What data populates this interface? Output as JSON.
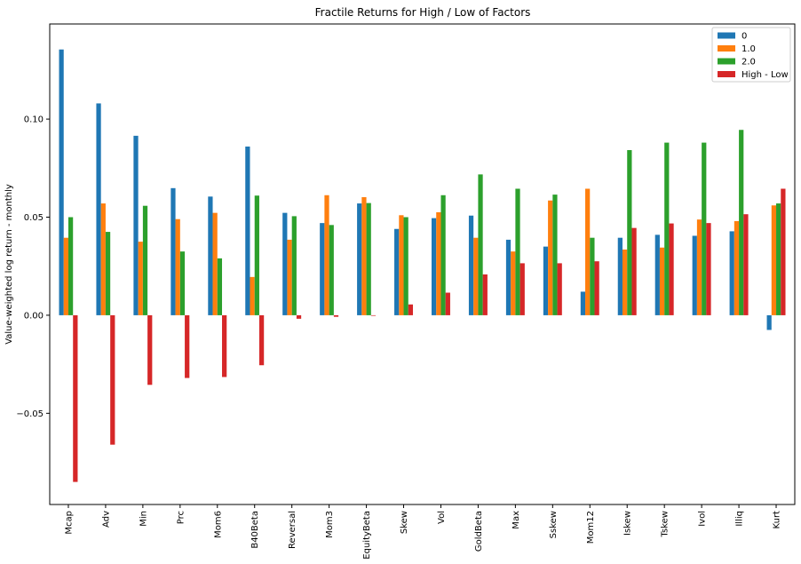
{
  "chart_data": {
    "type": "bar",
    "title": "Fractile Returns for High / Low of Factors",
    "xlabel": "",
    "ylabel": "Value-weighted log return - monthly",
    "ylim": [
      -0.0965,
      0.1485
    ],
    "yticks": [
      -0.05,
      0.0,
      0.05,
      0.1
    ],
    "ytick_labels": [
      "−0.05",
      "0.00",
      "0.05",
      "0.10"
    ],
    "grid": false,
    "legend_position": "top-right",
    "categories": [
      "Mcap",
      "Adv",
      "Min",
      "Prc",
      "Mom6",
      "B40Beta",
      "Reversal",
      "Mom3",
      "EquityBeta",
      "Skew",
      "Vol",
      "GoldBeta",
      "Max",
      "Sskew",
      "Mom12",
      "Iskew",
      "Tskew",
      "Ivol",
      "Illiq",
      "Kurt"
    ],
    "series": [
      {
        "name": "0",
        "color": "#1f77b4",
        "values": [
          0.1355,
          0.108,
          0.0915,
          0.0648,
          0.0605,
          0.086,
          0.0522,
          0.047,
          0.057,
          0.044,
          0.0495,
          0.0508,
          0.0385,
          0.035,
          0.012,
          0.0395,
          0.041,
          0.0405,
          0.0428,
          -0.0075
        ]
      },
      {
        "name": "1.0",
        "color": "#ff7f0e",
        "values": [
          0.0395,
          0.057,
          0.0375,
          0.049,
          0.0522,
          0.0195,
          0.0385,
          0.0612,
          0.0602,
          0.051,
          0.0525,
          0.0395,
          0.0325,
          0.0585,
          0.0645,
          0.0335,
          0.0345,
          0.0488,
          0.048,
          0.056
        ]
      },
      {
        "name": "2.0",
        "color": "#2ca02c",
        "values": [
          0.05,
          0.0425,
          0.0558,
          0.0325,
          0.029,
          0.061,
          0.0505,
          0.046,
          0.0572,
          0.05,
          0.0612,
          0.0718,
          0.0645,
          0.0615,
          0.0395,
          0.0842,
          0.088,
          0.088,
          0.0945,
          0.057
        ]
      },
      {
        "name": "High - Low",
        "color": "#d62728",
        "values": [
          -0.085,
          -0.066,
          -0.0355,
          -0.032,
          -0.0315,
          -0.0255,
          -0.0018,
          -0.0008,
          -0.0003,
          0.0055,
          0.0115,
          0.0208,
          0.0265,
          0.0265,
          0.0275,
          0.0445,
          0.0468,
          0.047,
          0.0515,
          0.0645
        ]
      }
    ]
  }
}
